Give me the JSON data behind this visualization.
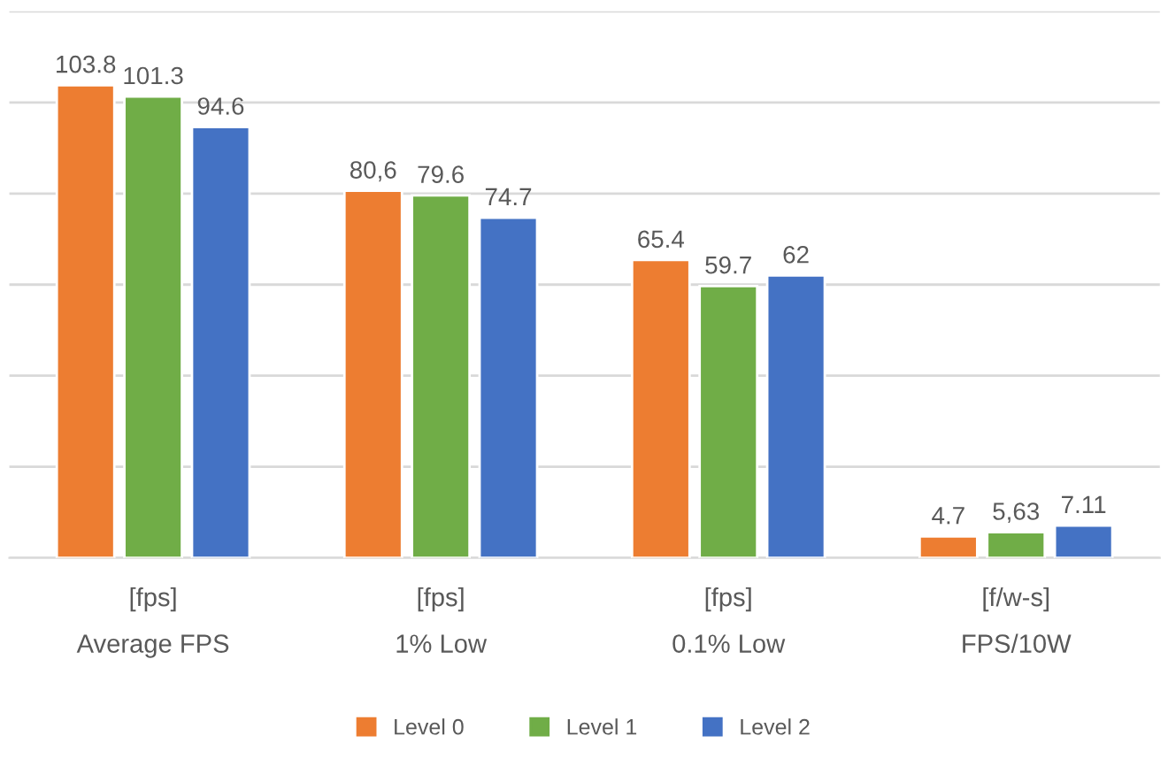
{
  "chart_data": {
    "type": "bar",
    "categories": [
      "[fps]\nAverage FPS",
      "[fps]\n1% Low",
      "[fps]\n0.1% Low",
      "[f/w-s]\nFPS/10W"
    ],
    "series": [
      {
        "name": "Level 0",
        "color": "#ed7d31",
        "values": [
          103.8,
          80.6,
          65.4,
          4.7
        ],
        "value_labels": [
          "103.8",
          "80,6",
          "65.4",
          "4.7"
        ]
      },
      {
        "name": "Level 1",
        "color": "#70ad47",
        "values": [
          101.3,
          79.6,
          59.7,
          5.63
        ],
        "value_labels": [
          "101.3",
          "79.6",
          "59.7",
          "5,63"
        ]
      },
      {
        "name": "Level 2",
        "color": "#4472c4",
        "values": [
          94.6,
          74.7,
          62,
          7.11
        ],
        "value_labels": [
          "94.6",
          "74.7",
          "62",
          "7.11"
        ]
      }
    ],
    "ylim": [
      0,
      120
    ],
    "yticks": [
      {
        "value": 0,
        "label": null
      },
      {
        "value": 20,
        "label": null
      },
      {
        "value": 40,
        "label": null
      },
      {
        "value": 60,
        "label": null
      },
      {
        "value": 80,
        "label": null
      },
      {
        "value": 100,
        "label": null
      },
      {
        "value": 120,
        "label": null
      }
    ],
    "grid": "y",
    "legend": "bottom",
    "tick_labels": "x"
  }
}
